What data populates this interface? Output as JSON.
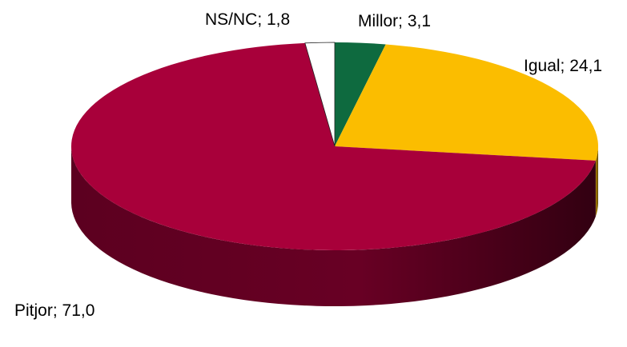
{
  "chart_data": {
    "type": "pie",
    "style": "3d",
    "start": "12 o'clock",
    "direction": "clockwise",
    "slices": [
      {
        "name": "Millor",
        "value": 3.1,
        "label": "Millor; 3,1",
        "color": "#0e6a3f"
      },
      {
        "name": "Igual",
        "value": 24.1,
        "label": "Igual; 24,1",
        "color": "#fbbd00"
      },
      {
        "name": "Pitjor",
        "value": 71.0,
        "label": "Pitjor; 71,0",
        "color": "#a8003a"
      },
      {
        "name": "NS/NC",
        "value": 1.8,
        "label": "NS/NC; 1,8",
        "color": "#ffffff"
      }
    ]
  }
}
